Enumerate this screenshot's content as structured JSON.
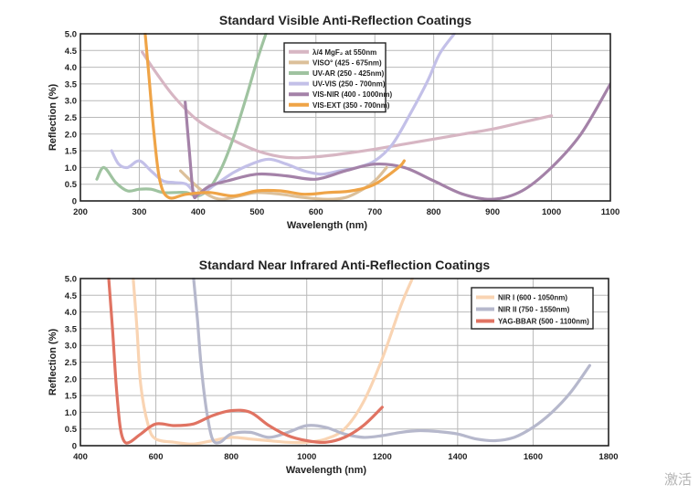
{
  "watermark": "激活",
  "chart_data": [
    {
      "type": "line",
      "title": "Standard Visible Anti-Reflection Coatings",
      "xlabel": "Wavelength (nm)",
      "ylabel": "Reflection (%)",
      "xlim": [
        200,
        1100
      ],
      "ylim": [
        0,
        5.0
      ],
      "xticks": [
        200,
        300,
        400,
        500,
        600,
        700,
        800,
        900,
        1000,
        1100
      ],
      "yticks": [
        "0",
        "0.5",
        "1.0",
        "1.5",
        "2.0",
        "2.5",
        "3.0",
        "3.5",
        "4.0",
        "4.5",
        "5.0"
      ],
      "grid": true,
      "legend_position": "top-center",
      "series": [
        {
          "name": "λ/4 MgF₂ at 550nm",
          "color": "#d7b6c3",
          "x": [
            305,
            330,
            360,
            400,
            450,
            500,
            550,
            600,
            650,
            700,
            750,
            800,
            850,
            900,
            950,
            1000
          ],
          "y": [
            4.45,
            3.8,
            3.1,
            2.4,
            1.9,
            1.5,
            1.3,
            1.32,
            1.42,
            1.55,
            1.7,
            1.85,
            2.0,
            2.15,
            2.35,
            2.55
          ]
        },
        {
          "name": "VISO° (425 - 675nm)",
          "color": "#dcc09a",
          "x": [
            370,
            400,
            420,
            440,
            470,
            500,
            540,
            580,
            620,
            650,
            675,
            700,
            720
          ],
          "y": [
            0.9,
            0.4,
            0.15,
            0.05,
            0.15,
            0.25,
            0.2,
            0.1,
            0.05,
            0.1,
            0.3,
            0.6,
            1.0
          ]
        },
        {
          "name": "UV-AR (250 - 425nm)",
          "color": "#9fc3a0",
          "x": [
            228,
            240,
            260,
            280,
            300,
            320,
            340,
            360,
            380,
            400,
            420,
            440,
            460,
            480,
            500,
            515
          ],
          "y": [
            0.65,
            1.0,
            0.55,
            0.3,
            0.35,
            0.35,
            0.25,
            0.25,
            0.25,
            0.15,
            0.4,
            1.0,
            1.9,
            3.0,
            4.2,
            5.0
          ]
        },
        {
          "name": "UV-VIS (250 - 700nm)",
          "color": "#c3c0e8",
          "x": [
            253,
            265,
            280,
            300,
            320,
            340,
            360,
            380,
            400,
            430,
            460,
            490,
            520,
            550,
            580,
            610,
            640,
            670,
            700,
            730,
            760,
            790,
            810,
            835
          ],
          "y": [
            1.5,
            1.1,
            1.0,
            1.2,
            0.9,
            0.6,
            0.55,
            0.5,
            0.2,
            0.5,
            0.85,
            1.1,
            1.25,
            1.1,
            0.9,
            0.8,
            0.9,
            1.0,
            1.2,
            1.7,
            2.6,
            3.6,
            4.4,
            5.0
          ]
        },
        {
          "name": "VIS-NIR (400 - 1000nm)",
          "color": "#a482a8",
          "x": [
            378,
            385,
            392,
            400,
            420,
            450,
            500,
            550,
            600,
            650,
            700,
            750,
            800,
            850,
            900,
            950,
            1000,
            1050,
            1100
          ],
          "y": [
            2.95,
            1.5,
            0.2,
            0.2,
            0.45,
            0.6,
            0.8,
            0.75,
            0.65,
            0.9,
            1.1,
            1.0,
            0.6,
            0.2,
            0.05,
            0.3,
            1.0,
            2.0,
            3.5
          ]
        },
        {
          "name": "VIS-EXT (350 - 700nm)",
          "color": "#efa447",
          "x": [
            310,
            316,
            325,
            335,
            350,
            380,
            420,
            460,
            500,
            540,
            580,
            620,
            660,
            700,
            740,
            750
          ],
          "y": [
            5.0,
            3.8,
            2.0,
            0.6,
            0.1,
            0.2,
            0.25,
            0.15,
            0.3,
            0.3,
            0.2,
            0.25,
            0.3,
            0.5,
            1.0,
            1.2
          ]
        }
      ]
    },
    {
      "type": "line",
      "title": "Standard Near Infrared Anti-Reflection Coatings",
      "xlabel": "Wavelength (nm)",
      "ylabel": "Reflection (%)",
      "xlim": [
        400,
        1800
      ],
      "ylim": [
        0,
        5.0
      ],
      "xticks": [
        400,
        600,
        800,
        1000,
        1200,
        1400,
        1600,
        1800
      ],
      "yticks": [
        "0",
        "0.5",
        "1.0",
        "1.5",
        "2.0",
        "2.5",
        "3.0",
        "3.5",
        "4.0",
        "4.5",
        "5.0"
      ],
      "grid": true,
      "legend_position": "top-right",
      "series": [
        {
          "name": "NIR I (600 - 1050nm)",
          "color": "#f9d4b3",
          "x": [
            540,
            550,
            560,
            580,
            600,
            650,
            700,
            750,
            800,
            850,
            900,
            950,
            1000,
            1050,
            1100,
            1150,
            1200,
            1250,
            1280
          ],
          "y": [
            5.0,
            3.5,
            1.8,
            0.6,
            0.2,
            0.1,
            0.05,
            0.15,
            0.25,
            0.2,
            0.15,
            0.1,
            0.1,
            0.2,
            0.5,
            1.3,
            2.6,
            4.2,
            5.0
          ]
        },
        {
          "name": "NIR II (750 - 1550nm)",
          "color": "#b6b8cc",
          "x": [
            700,
            710,
            720,
            735,
            750,
            770,
            800,
            850,
            900,
            950,
            1000,
            1050,
            1100,
            1150,
            1200,
            1250,
            1300,
            1350,
            1400,
            1450,
            1500,
            1550,
            1600,
            1650,
            1700,
            1750
          ],
          "y": [
            5.0,
            3.8,
            2.4,
            1.0,
            0.2,
            0.1,
            0.35,
            0.4,
            0.25,
            0.4,
            0.6,
            0.55,
            0.35,
            0.25,
            0.3,
            0.4,
            0.45,
            0.42,
            0.35,
            0.2,
            0.15,
            0.25,
            0.55,
            1.0,
            1.6,
            2.4
          ]
        },
        {
          "name": "YAG-BBAR (500 - 1100nm)",
          "color": "#e07362",
          "x": [
            475,
            485,
            495,
            505,
            515,
            530,
            560,
            600,
            650,
            700,
            750,
            800,
            850,
            900,
            950,
            1000,
            1050,
            1100,
            1150,
            1200
          ],
          "y": [
            5.0,
            3.5,
            1.8,
            0.6,
            0.15,
            0.1,
            0.35,
            0.65,
            0.6,
            0.65,
            0.9,
            1.05,
            1.0,
            0.6,
            0.3,
            0.15,
            0.1,
            0.25,
            0.6,
            1.15
          ]
        }
      ]
    }
  ]
}
